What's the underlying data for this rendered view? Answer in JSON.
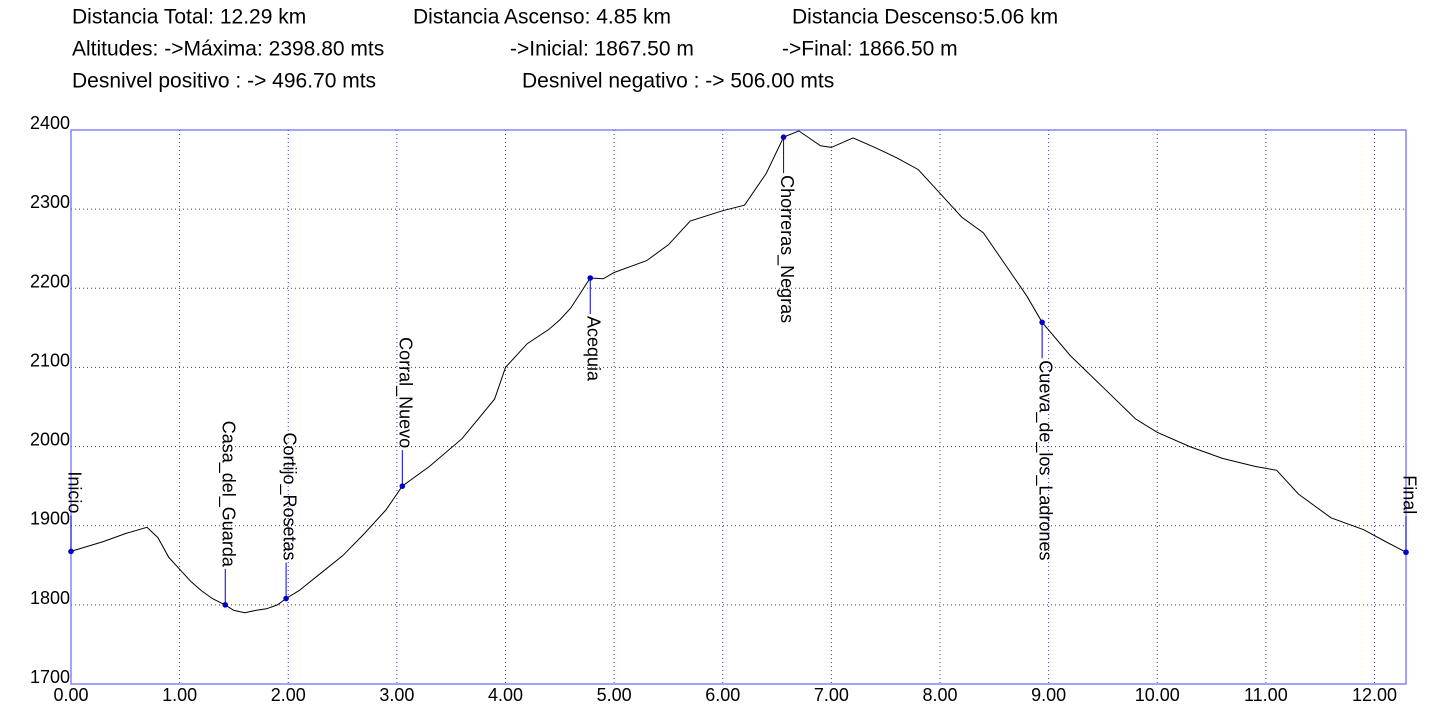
{
  "chart_data": {
    "type": "line",
    "header": [
      [
        "Distancia Total: 12.29 km",
        "Distancia Ascenso: 4.85 km",
        "Distancia Descenso:5.06 km"
      ],
      [
        "Altitudes: ->Máxima: 2398.80 mts",
        "->Inicial: 1867.50 m",
        "->Final: 1866.50 m"
      ],
      [
        "Desnivel positivo : -> 496.70 mts",
        "Desnivel negativo : -> 506.00 mts"
      ]
    ],
    "xlim": [
      0,
      12.29
    ],
    "ylim": [
      1700,
      2400
    ],
    "xticks": [
      {
        "value": 0,
        "label": "0.00"
      },
      {
        "value": 1,
        "label": "1.00"
      },
      {
        "value": 2,
        "label": "2.00"
      },
      {
        "value": 3,
        "label": "3.00"
      },
      {
        "value": 4,
        "label": "4.00"
      },
      {
        "value": 5,
        "label": "5.00"
      },
      {
        "value": 6,
        "label": "6.00"
      },
      {
        "value": 7,
        "label": "7.00"
      },
      {
        "value": 8,
        "label": "8.00"
      },
      {
        "value": 9,
        "label": "9.00"
      },
      {
        "value": 10,
        "label": "10.00"
      },
      {
        "value": 11,
        "label": "11.00"
      },
      {
        "value": 12,
        "label": "12.00"
      }
    ],
    "yticks": [
      1700,
      1800,
      1900,
      2000,
      2100,
      2200,
      2300,
      2400
    ],
    "grid": true,
    "profile": {
      "color": "#000000",
      "x": [
        0,
        0.3,
        0.5,
        0.7,
        0.8,
        0.9,
        1.0,
        1.1,
        1.2,
        1.3,
        1.42,
        1.5,
        1.6,
        1.7,
        1.8,
        1.9,
        1.98,
        2.1,
        2.3,
        2.5,
        2.7,
        2.9,
        3.05,
        3.3,
        3.6,
        3.9,
        4.0,
        4.2,
        4.4,
        4.5,
        4.6,
        4.78,
        4.9,
        5.0,
        5.3,
        5.5,
        5.7,
        6.0,
        6.2,
        6.4,
        6.56,
        6.7,
        6.9,
        7.0,
        7.2,
        7.4,
        7.6,
        7.8,
        8.0,
        8.2,
        8.4,
        8.6,
        8.8,
        8.94,
        9.2,
        9.5,
        9.8,
        10.0,
        10.3,
        10.6,
        10.9,
        11.1,
        11.3,
        11.6,
        11.9,
        12.1,
        12.29
      ],
      "values": [
        1867.5,
        1880,
        1890,
        1898,
        1885,
        1860,
        1845,
        1830,
        1818,
        1808,
        1800,
        1793,
        1790,
        1793,
        1795,
        1800,
        1808,
        1818,
        1840,
        1862,
        1890,
        1920,
        1950,
        1975,
        2010,
        2060,
        2100,
        2130,
        2148,
        2160,
        2175,
        2213,
        2212,
        2220,
        2235,
        2255,
        2285,
        2298,
        2305,
        2345,
        2391,
        2398.8,
        2380,
        2378,
        2390,
        2378,
        2365,
        2350,
        2320,
        2290,
        2270,
        2230,
        2190,
        2157,
        2115,
        2075,
        2035,
        2018,
        2000,
        1985,
        1975,
        1970,
        1940,
        1910,
        1895,
        1880,
        1866.5
      ]
    },
    "waypoints": {
      "color": "#0000cc",
      "labels": [
        "Inicio",
        "Casa_del_Guarda",
        "Cortijo_Rosetas",
        "Corral_Nuevo",
        "Acequia",
        "Chorreras_Negras",
        "Cueva_de_los_Ladrones",
        "Final"
      ],
      "x": [
        0,
        1.42,
        1.98,
        3.05,
        4.78,
        6.56,
        8.94,
        12.29
      ],
      "values": [
        1867.5,
        1800,
        1808,
        1950,
        2213,
        2391,
        2157,
        1866.5
      ]
    }
  }
}
